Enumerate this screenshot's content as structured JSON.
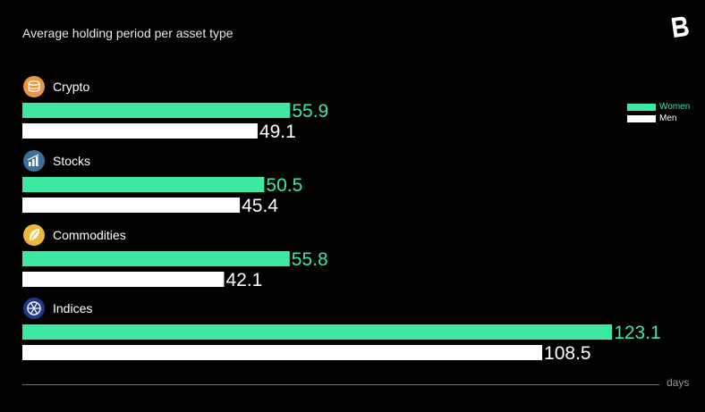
{
  "colors": {
    "women": "#3DE8A0",
    "men": "#FFFFFF",
    "background": "#000000"
  },
  "chart_data": {
    "type": "bar",
    "orientation": "horizontal",
    "title": "Average holding period per asset type",
    "xlabel": "days",
    "xlim": [
      0,
      130
    ],
    "grid": false,
    "legend_position": "top-right",
    "categories": [
      "Crypto",
      "Stocks",
      "Commodities",
      "Indices"
    ],
    "category_icons": [
      "coins-icon",
      "stocks-chart-icon",
      "commodities-leaf-icon",
      "indices-wheel-icon"
    ],
    "series": [
      {
        "name": "Women",
        "values": [
          55.9,
          50.5,
          55.8,
          123.1
        ],
        "labels": [
          "55.9",
          "50.5",
          "55.8",
          "123.1"
        ]
      },
      {
        "name": "Men",
        "values": [
          49.1,
          45.4,
          42.1,
          108.5
        ],
        "labels": [
          "49.1",
          "45.4",
          "42.1",
          "108.5"
        ]
      }
    ]
  },
  "brand": {
    "logo_icon": "brand-b-logo-icon"
  }
}
